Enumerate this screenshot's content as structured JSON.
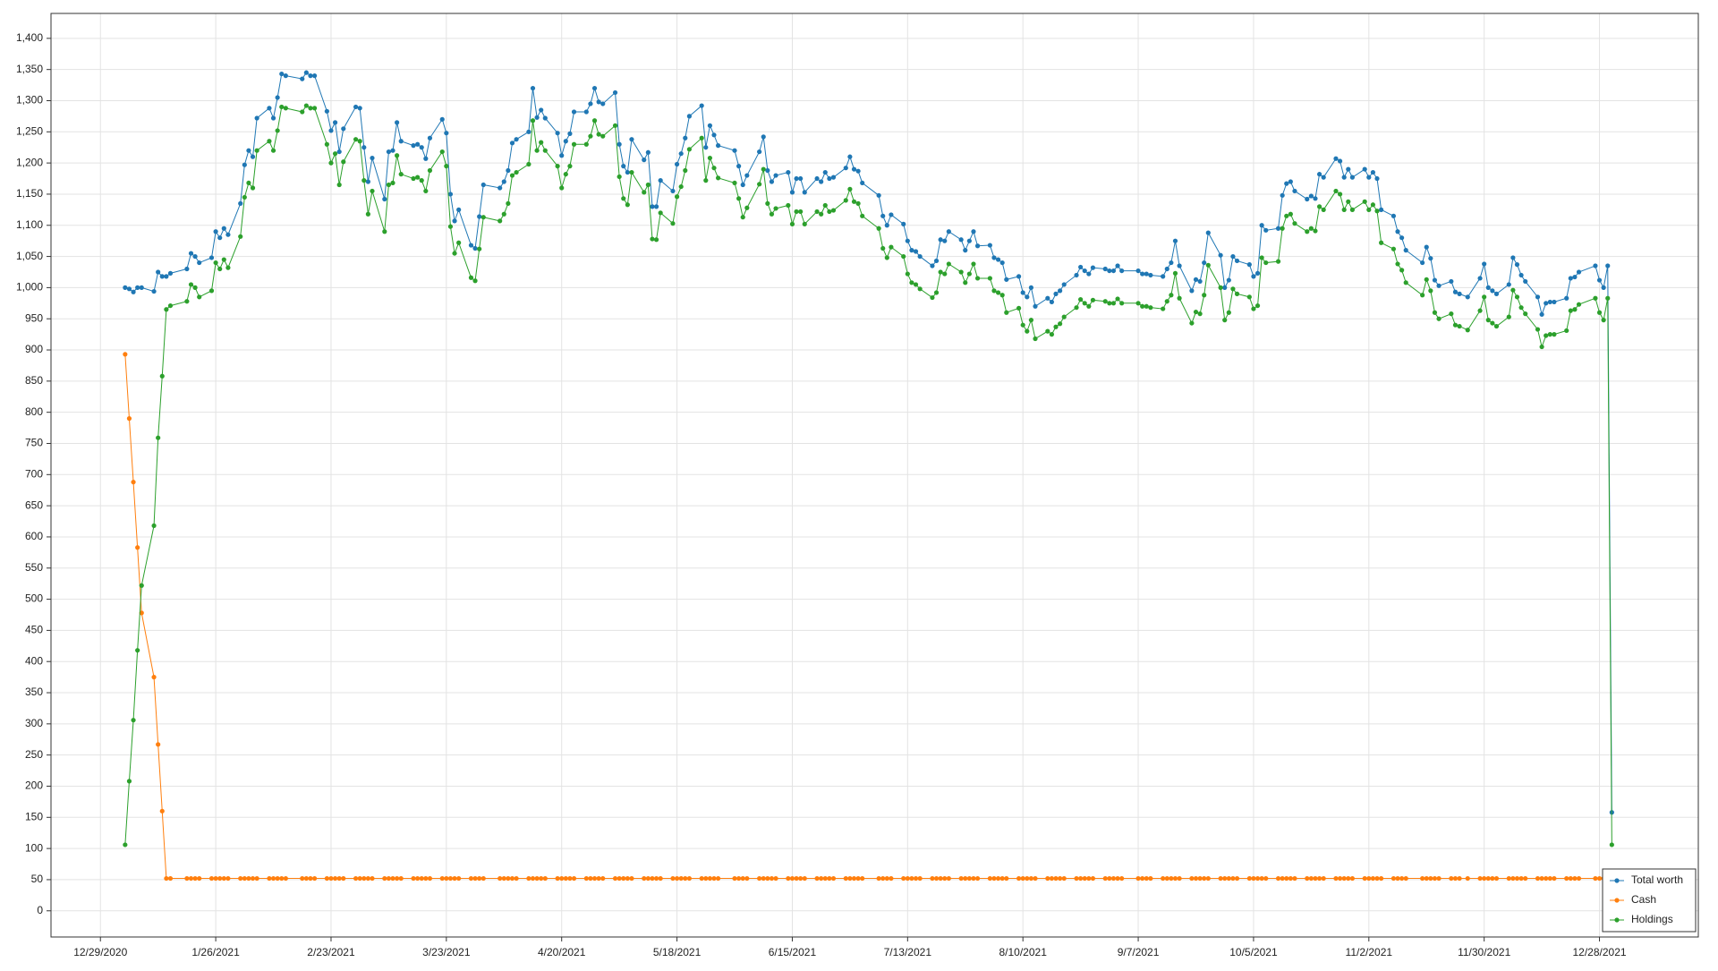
{
  "chart_data": {
    "type": "line",
    "x": [
      "1/4/2021",
      "1/5/2021",
      "1/6/2021",
      "1/7/2021",
      "1/8/2021",
      "1/11/2021",
      "1/12/2021",
      "1/13/2021",
      "1/14/2021",
      "1/15/2021",
      "1/19/2021",
      "1/20/2021",
      "1/21/2021",
      "1/22/2021",
      "1/25/2021",
      "1/26/2021",
      "1/27/2021",
      "1/28/2021",
      "1/29/2021",
      "2/1/2021",
      "2/2/2021",
      "2/3/2021",
      "2/4/2021",
      "2/5/2021",
      "2/8/2021",
      "2/9/2021",
      "2/10/2021",
      "2/11/2021",
      "2/12/2021",
      "2/16/2021",
      "2/17/2021",
      "2/18/2021",
      "2/19/2021",
      "2/22/2021",
      "2/23/2021",
      "2/24/2021",
      "2/25/2021",
      "2/26/2021",
      "3/1/2021",
      "3/2/2021",
      "3/3/2021",
      "3/4/2021",
      "3/5/2021",
      "3/8/2021",
      "3/9/2021",
      "3/10/2021",
      "3/11/2021",
      "3/12/2021",
      "3/15/2021",
      "3/16/2021",
      "3/17/2021",
      "3/18/2021",
      "3/19/2021",
      "3/22/2021",
      "3/23/2021",
      "3/24/2021",
      "3/25/2021",
      "3/26/2021",
      "3/29/2021",
      "3/30/2021",
      "3/31/2021",
      "4/1/2021",
      "4/5/2021",
      "4/6/2021",
      "4/7/2021",
      "4/8/2021",
      "4/9/2021",
      "4/12/2021",
      "4/13/2021",
      "4/14/2021",
      "4/15/2021",
      "4/16/2021",
      "4/19/2021",
      "4/20/2021",
      "4/21/2021",
      "4/22/2021",
      "4/23/2021",
      "4/26/2021",
      "4/27/2021",
      "4/28/2021",
      "4/29/2021",
      "4/30/2021",
      "5/3/2021",
      "5/4/2021",
      "5/5/2021",
      "5/6/2021",
      "5/7/2021",
      "5/10/2021",
      "5/11/2021",
      "5/12/2021",
      "5/13/2021",
      "5/14/2021",
      "5/17/2021",
      "5/18/2021",
      "5/19/2021",
      "5/20/2021",
      "5/21/2021",
      "5/24/2021",
      "5/25/2021",
      "5/26/2021",
      "5/27/2021",
      "5/28/2021",
      "6/1/2021",
      "6/2/2021",
      "6/3/2021",
      "6/4/2021",
      "6/7/2021",
      "6/8/2021",
      "6/9/2021",
      "6/10/2021",
      "6/11/2021",
      "6/14/2021",
      "6/15/2021",
      "6/16/2021",
      "6/17/2021",
      "6/18/2021",
      "6/21/2021",
      "6/22/2021",
      "6/23/2021",
      "6/24/2021",
      "6/25/2021",
      "6/28/2021",
      "6/29/2021",
      "6/30/2021",
      "7/1/2021",
      "7/2/2021",
      "7/6/2021",
      "7/7/2021",
      "7/8/2021",
      "7/9/2021",
      "7/12/2021",
      "7/13/2021",
      "7/14/2021",
      "7/15/2021",
      "7/16/2021",
      "7/19/2021",
      "7/20/2021",
      "7/21/2021",
      "7/22/2021",
      "7/23/2021",
      "7/26/2021",
      "7/27/2021",
      "7/28/2021",
      "7/29/2021",
      "7/30/2021",
      "8/2/2021",
      "8/3/2021",
      "8/4/2021",
      "8/5/2021",
      "8/6/2021",
      "8/9/2021",
      "8/10/2021",
      "8/11/2021",
      "8/12/2021",
      "8/13/2021",
      "8/16/2021",
      "8/17/2021",
      "8/18/2021",
      "8/19/2021",
      "8/20/2021",
      "8/23/2021",
      "8/24/2021",
      "8/25/2021",
      "8/26/2021",
      "8/27/2021",
      "8/30/2021",
      "8/31/2021",
      "9/1/2021",
      "9/2/2021",
      "9/3/2021",
      "9/7/2021",
      "9/8/2021",
      "9/9/2021",
      "9/10/2021",
      "9/13/2021",
      "9/14/2021",
      "9/15/2021",
      "9/16/2021",
      "9/17/2021",
      "9/20/2021",
      "9/21/2021",
      "9/22/2021",
      "9/23/2021",
      "9/24/2021",
      "9/27/2021",
      "9/28/2021",
      "9/29/2021",
      "9/30/2021",
      "10/1/2021",
      "10/4/2021",
      "10/5/2021",
      "10/6/2021",
      "10/7/2021",
      "10/8/2021",
      "10/11/2021",
      "10/12/2021",
      "10/13/2021",
      "10/14/2021",
      "10/15/2021",
      "10/18/2021",
      "10/19/2021",
      "10/20/2021",
      "10/21/2021",
      "10/22/2021",
      "10/25/2021",
      "10/26/2021",
      "10/27/2021",
      "10/28/2021",
      "10/29/2021",
      "11/1/2021",
      "11/2/2021",
      "11/3/2021",
      "11/4/2021",
      "11/5/2021",
      "11/8/2021",
      "11/9/2021",
      "11/10/2021",
      "11/11/2021",
      "11/15/2021",
      "11/16/2021",
      "11/17/2021",
      "11/18/2021",
      "11/19/2021",
      "11/22/2021",
      "11/23/2021",
      "11/24/2021",
      "11/26/2021",
      "11/29/2021",
      "11/30/2021",
      "12/1/2021",
      "12/2/2021",
      "12/3/2021",
      "12/6/2021",
      "12/7/2021",
      "12/8/2021",
      "12/9/2021",
      "12/10/2021",
      "12/13/2021",
      "12/14/2021",
      "12/15/2021",
      "12/16/2021",
      "12/17/2021",
      "12/20/2021",
      "12/21/2021",
      "12/22/2021",
      "12/23/2021",
      "12/27/2021",
      "12/28/2021",
      "12/29/2021",
      "12/30/2021",
      "12/31/2021"
    ],
    "series": [
      {
        "name": "Total worth",
        "color": "#1f77b4",
        "values": [
          1000,
          998,
          993,
          1000,
          1000,
          994,
          1025,
          1018,
          1018,
          1023,
          1030,
          1055,
          1050,
          1040,
          1048,
          1090,
          1080,
          1095,
          1085,
          1135,
          1197,
          1220,
          1210,
          1272,
          1288,
          1272,
          1305,
          1343,
          1340,
          1335,
          1345,
          1340,
          1340,
          1283,
          1252,
          1265,
          1218,
          1255,
          1290,
          1288,
          1225,
          1170,
          1208,
          1142,
          1218,
          1220,
          1265,
          1235,
          1228,
          1230,
          1225,
          1207,
          1240,
          1270,
          1248,
          1150,
          1107,
          1125,
          1068,
          1063,
          1114,
          1165,
          1160,
          1170,
          1188,
          1232,
          1238,
          1250,
          1320,
          1273,
          1285,
          1272,
          1248,
          1212,
          1235,
          1247,
          1282,
          1282,
          1295,
          1320,
          1298,
          1295,
          1313,
          1230,
          1195,
          1185,
          1238,
          1205,
          1217,
          1130,
          1130,
          1172,
          1155,
          1198,
          1215,
          1240,
          1275,
          1292,
          1225,
          1260,
          1245,
          1228,
          1220,
          1195,
          1165,
          1180,
          1218,
          1242,
          1188,
          1170,
          1180,
          1185,
          1153,
          1175,
          1175,
          1153,
          1175,
          1170,
          1185,
          1175,
          1177,
          1192,
          1210,
          1190,
          1187,
          1168,
          1148,
          1115,
          1100,
          1117,
          1102,
          1075,
          1060,
          1058,
          1050,
          1035,
          1043,
          1077,
          1075,
          1090,
          1077,
          1060,
          1075,
          1090,
          1067,
          1068,
          1048,
          1045,
          1040,
          1013,
          1018,
          992,
          985,
          1000,
          970,
          983,
          977,
          990,
          995,
          1005,
          1020,
          1033,
          1027,
          1022,
          1032,
          1030,
          1027,
          1027,
          1035,
          1027,
          1027,
          1022,
          1022,
          1020,
          1018,
          1030,
          1040,
          1075,
          1035,
          995,
          1013,
          1010,
          1040,
          1088,
          1052,
          1000,
          1012,
          1050,
          1043,
          1037,
          1018,
          1023,
          1100,
          1092,
          1095,
          1148,
          1167,
          1170,
          1155,
          1142,
          1147,
          1143,
          1182,
          1177,
          1207,
          1203,
          1177,
          1190,
          1177,
          1190,
          1177,
          1185,
          1175,
          1125,
          1115,
          1090,
          1080,
          1060,
          1040,
          1065,
          1047,
          1012,
          1003,
          1010,
          993,
          990,
          985,
          1015,
          1038,
          1000,
          995,
          990,
          1005,
          1048,
          1037,
          1020,
          1010,
          985,
          957,
          975,
          977,
          977,
          983,
          1015,
          1017,
          1025,
          1035,
          1012,
          1000,
          1035,
          158
        ]
      },
      {
        "name": "Cash",
        "color": "#ff7f0e",
        "values": [
          893,
          790,
          688,
          583,
          478,
          375,
          267,
          160,
          52,
          52,
          52,
          52,
          52,
          52,
          52,
          52,
          52,
          52,
          52,
          52,
          52,
          52,
          52,
          52,
          52,
          52,
          52,
          52,
          52,
          52,
          52,
          52,
          52,
          52,
          52,
          52,
          52,
          52,
          52,
          52,
          52,
          52,
          52,
          52,
          52,
          52,
          52,
          52,
          52,
          52,
          52,
          52,
          52,
          52,
          52,
          52,
          52,
          52,
          52,
          52,
          52,
          52,
          52,
          52,
          52,
          52,
          52,
          52,
          52,
          52,
          52,
          52,
          52,
          52,
          52,
          52,
          52,
          52,
          52,
          52,
          52,
          52,
          52,
          52,
          52,
          52,
          52,
          52,
          52,
          52,
          52,
          52,
          52,
          52,
          52,
          52,
          52,
          52,
          52,
          52,
          52,
          52,
          52,
          52,
          52,
          52,
          52,
          52,
          52,
          52,
          52,
          52,
          52,
          52,
          52,
          52,
          52,
          52,
          52,
          52,
          52,
          52,
          52,
          52,
          52,
          52,
          52,
          52,
          52,
          52,
          52,
          52,
          52,
          52,
          52,
          52,
          52,
          52,
          52,
          52,
          52,
          52,
          52,
          52,
          52,
          52,
          52,
          52,
          52,
          52,
          52,
          52,
          52,
          52,
          52,
          52,
          52,
          52,
          52,
          52,
          52,
          52,
          52,
          52,
          52,
          52,
          52,
          52,
          52,
          52,
          52,
          52,
          52,
          52,
          52,
          52,
          52,
          52,
          52,
          52,
          52,
          52,
          52,
          52,
          52,
          52,
          52,
          52,
          52,
          52,
          52,
          52,
          52,
          52,
          52,
          52,
          52,
          52,
          52,
          52,
          52,
          52,
          52,
          52,
          52,
          52,
          52,
          52,
          52,
          52,
          52,
          52,
          52,
          52,
          52,
          52,
          52,
          52,
          52,
          52,
          52,
          52,
          52,
          52,
          52,
          52,
          52,
          52,
          52,
          52,
          52,
          52,
          52,
          52,
          52,
          52,
          52,
          52,
          52,
          52,
          52,
          52,
          52,
          52,
          52,
          52,
          52,
          52,
          52,
          52,
          52
        ]
      },
      {
        "name": "Holdings",
        "color": "#2ca02c",
        "values": [
          106,
          208,
          306,
          418,
          522,
          618,
          759,
          858,
          965,
          971,
          978,
          1005,
          1000,
          985,
          995,
          1040,
          1030,
          1045,
          1032,
          1082,
          1145,
          1168,
          1160,
          1220,
          1235,
          1220,
          1252,
          1290,
          1288,
          1282,
          1292,
          1288,
          1288,
          1230,
          1200,
          1215,
          1165,
          1202,
          1238,
          1235,
          1172,
          1118,
          1155,
          1090,
          1165,
          1168,
          1212,
          1182,
          1175,
          1177,
          1172,
          1155,
          1188,
          1218,
          1195,
          1098,
          1055,
          1072,
          1016,
          1011,
          1062,
          1113,
          1107,
          1118,
          1135,
          1180,
          1185,
          1198,
          1268,
          1220,
          1233,
          1220,
          1195,
          1160,
          1182,
          1195,
          1230,
          1230,
          1243,
          1268,
          1246,
          1243,
          1260,
          1178,
          1143,
          1133,
          1185,
          1153,
          1165,
          1078,
          1077,
          1120,
          1103,
          1146,
          1162,
          1188,
          1222,
          1240,
          1172,
          1208,
          1192,
          1176,
          1168,
          1143,
          1113,
          1128,
          1166,
          1190,
          1135,
          1118,
          1127,
          1132,
          1102,
          1122,
          1122,
          1102,
          1122,
          1118,
          1132,
          1122,
          1124,
          1140,
          1158,
          1138,
          1135,
          1115,
          1095,
          1063,
          1048,
          1065,
          1050,
          1022,
          1008,
          1005,
          998,
          984,
          992,
          1025,
          1022,
          1038,
          1025,
          1008,
          1022,
          1038,
          1015,
          1015,
          995,
          992,
          988,
          960,
          967,
          940,
          930,
          948,
          918,
          930,
          925,
          937,
          942,
          953,
          968,
          981,
          975,
          970,
          980,
          978,
          975,
          975,
          982,
          975,
          975,
          970,
          970,
          968,
          966,
          978,
          988,
          1023,
          983,
          943,
          961,
          958,
          988,
          1036,
          1000,
          948,
          960,
          998,
          990,
          985,
          966,
          971,
          1048,
          1040,
          1042,
          1095,
          1115,
          1118,
          1103,
          1090,
          1095,
          1091,
          1130,
          1125,
          1155,
          1150,
          1125,
          1138,
          1125,
          1138,
          1125,
          1133,
          1123,
          1072,
          1062,
          1038,
          1028,
          1008,
          988,
          1013,
          995,
          960,
          950,
          958,
          940,
          938,
          932,
          963,
          985,
          948,
          943,
          938,
          953,
          996,
          985,
          968,
          958,
          933,
          905,
          923,
          925,
          925,
          931,
          963,
          965,
          973,
          983,
          960,
          948,
          983,
          106
        ]
      }
    ],
    "xlim": [
      "12/17/2020",
      "1/21/2022"
    ],
    "xticks": [
      "12/29/2020",
      "1/26/2021",
      "2/23/2021",
      "3/23/2021",
      "4/20/2021",
      "5/18/2021",
      "6/15/2021",
      "7/13/2021",
      "8/10/2021",
      "9/7/2021",
      "10/5/2021",
      "11/2/2021",
      "11/30/2021",
      "12/28/2021"
    ],
    "ylim": [
      -42,
      1440
    ],
    "yticks": [
      0,
      50,
      100,
      150,
      200,
      250,
      300,
      350,
      400,
      450,
      500,
      550,
      600,
      650,
      700,
      750,
      800,
      850,
      900,
      950,
      {
        "value": 1000,
        "label": "1,000"
      },
      {
        "value": 1050,
        "label": "1,050"
      },
      {
        "value": 1100,
        "label": "1,100"
      },
      {
        "value": 1150,
        "label": "1,150"
      },
      {
        "value": 1200,
        "label": "1,200"
      },
      {
        "value": 1250,
        "label": "1,250"
      },
      {
        "value": 1300,
        "label": "1,300"
      },
      {
        "value": 1350,
        "label": "1,350"
      },
      {
        "value": 1400,
        "label": "1,400"
      }
    ],
    "grid": true,
    "legend": "lower right"
  }
}
